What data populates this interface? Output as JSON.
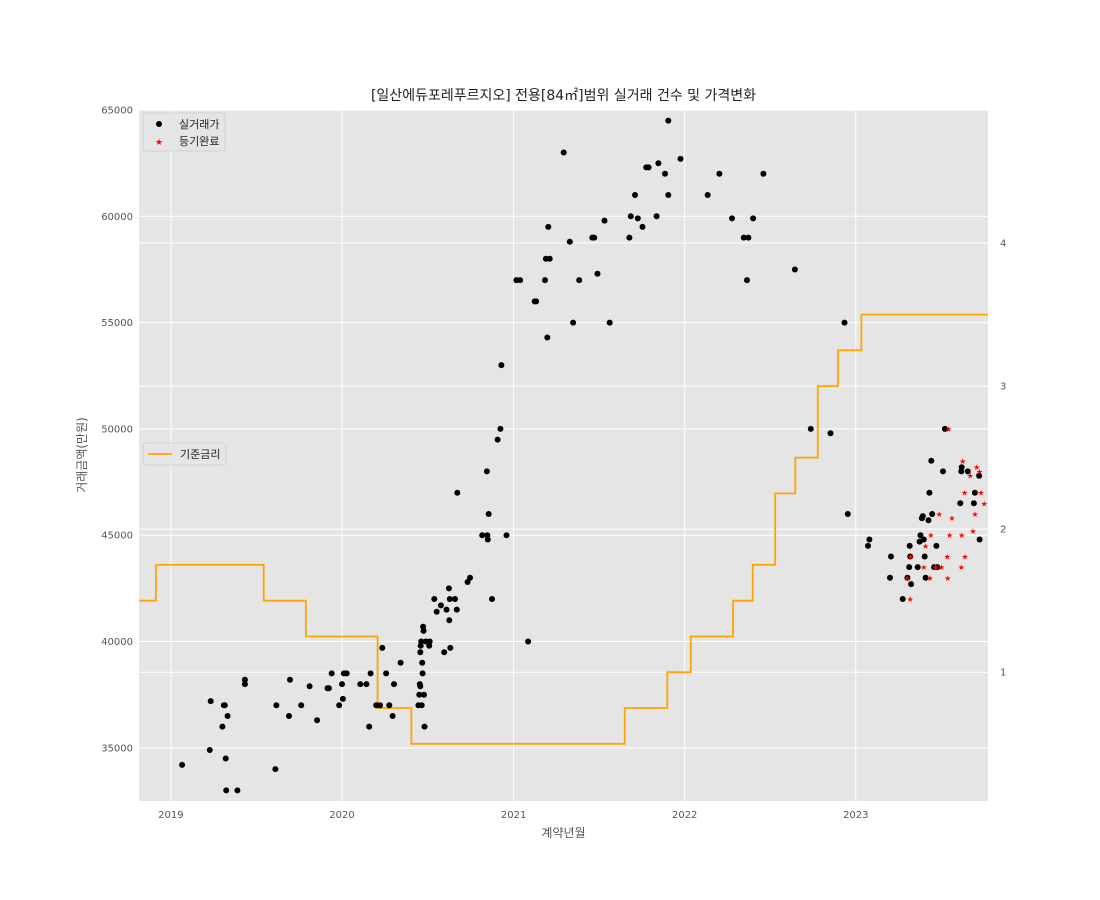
{
  "chart_data": {
    "type": "scatter",
    "title": "[일산에듀포레푸르지오] 전용[84㎡]범위 실거래 건수 및 가격변화",
    "xlabel": "계약년월",
    "ylabel": "거래금액(만원)",
    "x_ticks": [
      "2019",
      "2020",
      "2021",
      "2022",
      "2023"
    ],
    "xlim": [
      "2018-10-25",
      "2023-10-10"
    ],
    "ylim": [
      32500,
      65000
    ],
    "y_ticks": [
      35000,
      40000,
      45000,
      50000,
      55000,
      60000,
      65000
    ],
    "y2lim": [
      0.1,
      4.93
    ],
    "y2_ticks": [
      1,
      2,
      3,
      4
    ],
    "grid": true,
    "legend_top": {
      "position": "upper-left",
      "entries": [
        "실거래가",
        "등기완료"
      ]
    },
    "legend_middle": {
      "position": "center-left",
      "entries": [
        "기준금리"
      ]
    },
    "colors": {
      "transactions": "#000000",
      "registered": "#ff0000",
      "base_rate": "#ffa500",
      "background": "#e5e5e5",
      "grid": "#ffffff"
    },
    "series": [
      {
        "name": "실거래가",
        "marker": "circle",
        "points": [
          [
            "2019-01-25",
            34200
          ],
          [
            "2019-03-25",
            34900
          ],
          [
            "2019-03-27",
            37200
          ],
          [
            "2019-04-21",
            36000
          ],
          [
            "2019-04-24",
            37000
          ],
          [
            "2019-04-26",
            37000
          ],
          [
            "2019-04-28",
            34500
          ],
          [
            "2019-04-29",
            33000
          ],
          [
            "2019-05-02",
            36500
          ],
          [
            "2019-05-23",
            33000
          ],
          [
            "2019-06-08",
            38000
          ],
          [
            "2019-06-08",
            38200
          ],
          [
            "2019-08-12",
            34000
          ],
          [
            "2019-08-14",
            37000
          ],
          [
            "2019-09-10",
            36500
          ],
          [
            "2019-09-12",
            38200
          ],
          [
            "2019-10-06",
            37000
          ],
          [
            "2019-10-24",
            37900
          ],
          [
            "2019-11-09",
            36300
          ],
          [
            "2019-12-01",
            37800
          ],
          [
            "2019-12-04",
            37800
          ],
          [
            "2019-12-10",
            38500
          ],
          [
            "2019-12-26",
            37000
          ],
          [
            "2020-01-01",
            38000
          ],
          [
            "2020-01-03",
            37300
          ],
          [
            "2020-01-05",
            38500
          ],
          [
            "2020-01-11",
            38500
          ],
          [
            "2020-02-09",
            38000
          ],
          [
            "2020-02-22",
            38000
          ],
          [
            "2020-02-28",
            36000
          ],
          [
            "2020-03-02",
            38500
          ],
          [
            "2020-03-14",
            37000
          ],
          [
            "2020-03-22",
            37000
          ],
          [
            "2020-03-27",
            39700
          ],
          [
            "2020-04-04",
            38500
          ],
          [
            "2020-04-11",
            37000
          ],
          [
            "2020-04-18",
            36500
          ],
          [
            "2020-04-21",
            38000
          ],
          [
            "2020-05-05",
            39000
          ],
          [
            "2020-06-12",
            37000
          ],
          [
            "2020-06-14",
            37500
          ],
          [
            "2020-06-15",
            38000
          ],
          [
            "2020-06-16",
            37900
          ],
          [
            "2020-06-16",
            39500
          ],
          [
            "2020-06-17",
            39800
          ],
          [
            "2020-06-18",
            40000
          ],
          [
            "2020-06-19",
            37000
          ],
          [
            "2020-06-20",
            39000
          ],
          [
            "2020-06-21",
            38500
          ],
          [
            "2020-06-22",
            40700
          ],
          [
            "2020-06-23",
            40500
          ],
          [
            "2020-06-24",
            37500
          ],
          [
            "2020-06-25",
            36000
          ],
          [
            "2020-06-28",
            40000
          ],
          [
            "2020-07-05",
            39800
          ],
          [
            "2020-07-06",
            40000
          ],
          [
            "2020-07-16",
            42000
          ],
          [
            "2020-07-21",
            41400
          ],
          [
            "2020-07-30",
            41700
          ],
          [
            "2020-08-06",
            39500
          ],
          [
            "2020-08-11",
            41500
          ],
          [
            "2020-08-16",
            42500
          ],
          [
            "2020-08-17",
            41000
          ],
          [
            "2020-08-18",
            42000
          ],
          [
            "2020-08-19",
            39700
          ],
          [
            "2020-08-29",
            42000
          ],
          [
            "2020-09-02",
            41500
          ],
          [
            "2020-09-03",
            47000
          ],
          [
            "2020-09-25",
            42800
          ],
          [
            "2020-09-30",
            43000
          ],
          [
            "2020-10-26",
            45000
          ],
          [
            "2020-11-05",
            48000
          ],
          [
            "2020-11-06",
            45000
          ],
          [
            "2020-11-07",
            44800
          ],
          [
            "2020-11-09",
            46000
          ],
          [
            "2020-11-16",
            42000
          ],
          [
            "2020-11-28",
            49500
          ],
          [
            "2020-12-04",
            50000
          ],
          [
            "2020-12-06",
            53000
          ],
          [
            "2020-12-17",
            45000
          ],
          [
            "2021-01-07",
            57000
          ],
          [
            "2021-01-15",
            57000
          ],
          [
            "2021-02-01",
            40000
          ],
          [
            "2021-02-15",
            56000
          ],
          [
            "2021-02-18",
            56000
          ],
          [
            "2021-03-09",
            57000
          ],
          [
            "2021-03-11",
            58000
          ],
          [
            "2021-03-14",
            54300
          ],
          [
            "2021-03-16",
            59500
          ],
          [
            "2021-03-19",
            58000
          ],
          [
            "2021-04-18",
            63000
          ],
          [
            "2021-05-01",
            58800
          ],
          [
            "2021-05-08",
            55000
          ],
          [
            "2021-05-21",
            57000
          ],
          [
            "2021-06-18",
            59000
          ],
          [
            "2021-06-22",
            59000
          ],
          [
            "2021-06-29",
            57300
          ],
          [
            "2021-07-14",
            59800
          ],
          [
            "2021-07-25",
            55000
          ],
          [
            "2021-09-05",
            59000
          ],
          [
            "2021-09-08",
            60000
          ],
          [
            "2021-09-17",
            61000
          ],
          [
            "2021-09-23",
            59900
          ],
          [
            "2021-10-03",
            59500
          ],
          [
            "2021-10-11",
            62300
          ],
          [
            "2021-10-16",
            62300
          ],
          [
            "2021-11-02",
            60000
          ],
          [
            "2021-11-06",
            62500
          ],
          [
            "2021-11-20",
            62000
          ],
          [
            "2021-11-27",
            61000
          ],
          [
            "2021-11-27",
            64500
          ],
          [
            "2021-12-23",
            62700
          ],
          [
            "2022-02-19",
            61000
          ],
          [
            "2022-03-16",
            62000
          ],
          [
            "2022-04-12",
            59900
          ],
          [
            "2022-05-07",
            59000
          ],
          [
            "2022-05-14",
            57000
          ],
          [
            "2022-05-17",
            59000
          ],
          [
            "2022-05-27",
            59900
          ],
          [
            "2022-06-18",
            62000
          ],
          [
            "2022-08-24",
            57500
          ],
          [
            "2022-09-27",
            50000
          ],
          [
            "2022-11-08",
            49800
          ],
          [
            "2022-12-08",
            55000
          ],
          [
            "2022-12-15",
            46000
          ],
          [
            "2023-01-27",
            44500
          ],
          [
            "2023-01-30",
            44800
          ],
          [
            "2023-03-15",
            43000
          ],
          [
            "2023-03-17",
            44000
          ],
          [
            "2023-04-11",
            42000
          ],
          [
            "2023-04-21",
            43000
          ],
          [
            "2023-04-25",
            43500
          ],
          [
            "2023-04-26",
            44500
          ],
          [
            "2023-04-27",
            44000
          ],
          [
            "2023-04-29",
            42700
          ],
          [
            "2023-05-13",
            43500
          ],
          [
            "2023-05-17",
            44700
          ],
          [
            "2023-05-19",
            45000
          ],
          [
            "2023-05-22",
            45800
          ],
          [
            "2023-05-24",
            45900
          ],
          [
            "2023-05-26",
            44800
          ],
          [
            "2023-05-28",
            44000
          ],
          [
            "2023-05-30",
            43000
          ],
          [
            "2023-06-05",
            45700
          ],
          [
            "2023-06-07",
            47000
          ],
          [
            "2023-06-11",
            48500
          ],
          [
            "2023-06-13",
            46000
          ],
          [
            "2023-06-17",
            43500
          ],
          [
            "2023-06-22",
            44500
          ],
          [
            "2023-06-24",
            43500
          ],
          [
            "2023-07-06",
            48000
          ],
          [
            "2023-07-10",
            50000
          ],
          [
            "2023-08-12",
            46500
          ],
          [
            "2023-08-14",
            48000
          ],
          [
            "2023-08-15",
            48200
          ],
          [
            "2023-08-28",
            48000
          ],
          [
            "2023-09-10",
            46500
          ],
          [
            "2023-09-12",
            47000
          ],
          [
            "2023-09-21",
            47800
          ],
          [
            "2023-09-22",
            44800
          ]
        ]
      },
      {
        "name": "등기완료",
        "marker": "star",
        "points": [
          [
            "2023-04-21",
            43000
          ],
          [
            "2023-04-27",
            42000
          ],
          [
            "2023-04-28",
            44000
          ],
          [
            "2023-05-26",
            43500
          ],
          [
            "2023-05-30",
            44500
          ],
          [
            "2023-06-08",
            43000
          ],
          [
            "2023-06-10",
            45000
          ],
          [
            "2023-06-20",
            43500
          ],
          [
            "2023-06-28",
            46000
          ],
          [
            "2023-07-03",
            43500
          ],
          [
            "2023-07-15",
            44000
          ],
          [
            "2023-07-16",
            43000
          ],
          [
            "2023-07-18",
            50000
          ],
          [
            "2023-07-20",
            45000
          ],
          [
            "2023-07-25",
            45800
          ],
          [
            "2023-08-14",
            43500
          ],
          [
            "2023-08-15",
            45000
          ],
          [
            "2023-08-17",
            48500
          ],
          [
            "2023-08-21",
            47000
          ],
          [
            "2023-08-22",
            44000
          ],
          [
            "2023-09-02",
            47800
          ],
          [
            "2023-09-08",
            45200
          ],
          [
            "2023-09-12",
            46000
          ],
          [
            "2023-09-16",
            48200
          ],
          [
            "2023-09-22",
            48000
          ],
          [
            "2023-09-25",
            47000
          ],
          [
            "2023-10-02",
            46500
          ]
        ]
      },
      {
        "name": "기준금리",
        "type": "step",
        "axis": "right",
        "points": [
          [
            "2018-10-25",
            1.5
          ],
          [
            "2018-11-30",
            1.75
          ],
          [
            "2019-07-18",
            1.5
          ],
          [
            "2019-10-16",
            1.25
          ],
          [
            "2020-03-17",
            0.75
          ],
          [
            "2020-05-28",
            0.5
          ],
          [
            "2021-08-26",
            0.75
          ],
          [
            "2021-11-25",
            1.0
          ],
          [
            "2022-01-14",
            1.25
          ],
          [
            "2022-04-14",
            1.5
          ],
          [
            "2022-05-26",
            1.75
          ],
          [
            "2022-07-13",
            2.25
          ],
          [
            "2022-08-25",
            2.5
          ],
          [
            "2022-10-12",
            3.0
          ],
          [
            "2022-11-24",
            3.25
          ],
          [
            "2023-01-13",
            3.5
          ],
          [
            "2023-10-10",
            3.5
          ]
        ]
      }
    ]
  }
}
